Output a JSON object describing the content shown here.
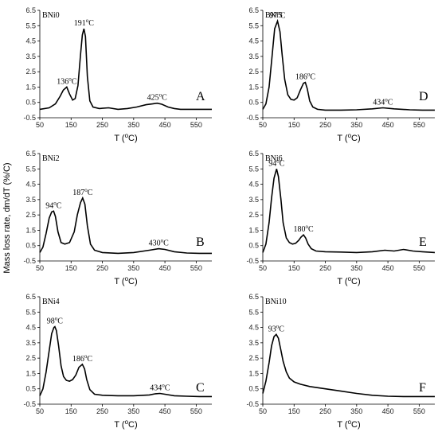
{
  "figure": {
    "ylabel": "Mass loss rate, dm/dT (%/C)",
    "xlabel_prefix": "T (",
    "xlabel_sup": "o",
    "xlabel_suffix": "C)"
  },
  "chart_data": [
    {
      "type": "line",
      "sample": "BNi0",
      "letter": "A",
      "xlim": [
        50,
        600
      ],
      "ylim": [
        -0.5,
        6.5
      ],
      "xticks": [
        50,
        150,
        250,
        350,
        450,
        550
      ],
      "yticks": [
        -0.5,
        0.5,
        1.5,
        2.5,
        3.5,
        4.5,
        5.5,
        6.5
      ],
      "x": [
        50,
        80,
        100,
        115,
        125,
        136,
        145,
        155,
        163,
        172,
        180,
        186,
        191,
        196,
        202,
        210,
        220,
        240,
        270,
        300,
        330,
        360,
        390,
        410,
        425,
        440,
        460,
        480,
        500,
        530,
        560,
        600
      ],
      "y": [
        0.05,
        0.15,
        0.4,
        0.9,
        1.3,
        1.5,
        1.05,
        0.65,
        0.75,
        1.6,
        3.6,
        4.9,
        5.3,
        4.8,
        2.2,
        0.6,
        0.2,
        0.1,
        0.15,
        0.05,
        0.1,
        0.2,
        0.35,
        0.4,
        0.45,
        0.38,
        0.2,
        0.1,
        0.05,
        0.05,
        0.05,
        0.05
      ],
      "peaks": [
        {
          "x": 136,
          "y": 1.5,
          "value": "136",
          "unit": "C"
        },
        {
          "x": 191,
          "y": 5.3,
          "value": "191",
          "unit": "C"
        },
        {
          "x": 425,
          "y": 0.45,
          "value": "425",
          "unit": "C"
        }
      ]
    },
    {
      "type": "line",
      "sample": "BNi5",
      "letter": "D",
      "xlim": [
        50,
        600
      ],
      "ylim": [
        -0.5,
        6.5
      ],
      "xticks": [
        50,
        150,
        250,
        350,
        450,
        550
      ],
      "yticks": [
        -0.5,
        0.5,
        1.5,
        2.5,
        3.5,
        4.5,
        5.5,
        6.5
      ],
      "x": [
        50,
        60,
        70,
        80,
        88,
        97,
        105,
        112,
        120,
        130,
        140,
        150,
        160,
        170,
        180,
        186,
        192,
        200,
        210,
        225,
        250,
        300,
        350,
        400,
        434,
        470,
        520,
        560,
        600
      ],
      "y": [
        0.05,
        0.4,
        1.5,
        3.6,
        5.3,
        5.8,
        5.1,
        3.6,
        2.0,
        1.0,
        0.7,
        0.65,
        0.8,
        1.3,
        1.75,
        1.8,
        1.4,
        0.6,
        0.2,
        0.05,
        0.0,
        0.0,
        0.02,
        0.08,
        0.15,
        0.08,
        0.02,
        0.0,
        0.0
      ],
      "peaks": [
        {
          "x": 97,
          "y": 5.8,
          "value": "97",
          "unit": "C"
        },
        {
          "x": 186,
          "y": 1.8,
          "value": "186",
          "unit": "C"
        },
        {
          "x": 434,
          "y": 0.15,
          "value": "434",
          "unit": "C"
        }
      ]
    },
    {
      "type": "line",
      "sample": "BNi2",
      "letter": "B",
      "xlim": [
        50,
        600
      ],
      "ylim": [
        -0.5,
        6.5
      ],
      "xticks": [
        50,
        150,
        250,
        350,
        450,
        550
      ],
      "yticks": [
        -0.5,
        0.5,
        1.5,
        2.5,
        3.5,
        4.5,
        5.5,
        6.5
      ],
      "x": [
        50,
        60,
        70,
        80,
        88,
        94,
        100,
        108,
        118,
        130,
        145,
        160,
        170,
        180,
        187,
        194,
        202,
        212,
        225,
        250,
        300,
        350,
        400,
        430,
        450,
        480,
        520,
        560,
        600
      ],
      "y": [
        0.05,
        0.4,
        1.3,
        2.3,
        2.7,
        2.75,
        2.4,
        1.4,
        0.7,
        0.6,
        0.7,
        1.4,
        2.5,
        3.3,
        3.6,
        3.2,
        1.8,
        0.6,
        0.2,
        0.05,
        0.0,
        0.05,
        0.2,
        0.3,
        0.25,
        0.1,
        0.02,
        0.0,
        0.0
      ],
      "peaks": [
        {
          "x": 94,
          "y": 2.75,
          "value": "94",
          "unit": "C"
        },
        {
          "x": 187,
          "y": 3.6,
          "value": "187",
          "unit": "C"
        },
        {
          "x": 430,
          "y": 0.3,
          "value": "430",
          "unit": "C"
        }
      ]
    },
    {
      "type": "line",
      "sample": "BNi6",
      "letter": "E",
      "xlim": [
        50,
        600
      ],
      "ylim": [
        -0.5,
        6.5
      ],
      "xticks": [
        50,
        150,
        250,
        350,
        450,
        550
      ],
      "yticks": [
        -0.5,
        0.5,
        1.5,
        2.5,
        3.5,
        4.5,
        5.5,
        6.5
      ],
      "x": [
        50,
        60,
        70,
        78,
        86,
        94,
        100,
        108,
        115,
        125,
        135,
        145,
        155,
        165,
        172,
        180,
        187,
        195,
        205,
        220,
        250,
        300,
        350,
        400,
        440,
        470,
        500,
        530,
        560,
        600
      ],
      "y": [
        0.05,
        0.6,
        2.0,
        3.6,
        4.9,
        5.5,
        5.0,
        3.5,
        2.0,
        1.0,
        0.7,
        0.6,
        0.65,
        0.85,
        1.05,
        1.2,
        1.0,
        0.6,
        0.3,
        0.15,
        0.1,
        0.08,
        0.05,
        0.1,
        0.2,
        0.15,
        0.25,
        0.15,
        0.1,
        0.05
      ],
      "peaks": [
        {
          "x": 94,
          "y": 5.5,
          "value": "94",
          "unit": "C"
        },
        {
          "x": 180,
          "y": 1.2,
          "value": "180",
          "unit": "C"
        }
      ]
    },
    {
      "type": "line",
      "sample": "BNi4",
      "letter": "C",
      "xlim": [
        50,
        600
      ],
      "ylim": [
        -0.5,
        6.5
      ],
      "xticks": [
        50,
        150,
        250,
        350,
        450,
        550
      ],
      "yticks": [
        -0.5,
        0.5,
        1.5,
        2.5,
        3.5,
        4.5,
        5.5,
        6.5
      ],
      "x": [
        50,
        60,
        70,
        80,
        88,
        95,
        98,
        103,
        110,
        118,
        126,
        135,
        145,
        155,
        165,
        175,
        186,
        193,
        200,
        210,
        225,
        250,
        300,
        350,
        400,
        420,
        434,
        450,
        480,
        520,
        560,
        600
      ],
      "y": [
        0.05,
        0.5,
        1.6,
        3.0,
        4.1,
        4.5,
        4.55,
        4.3,
        3.3,
        2.0,
        1.3,
        1.05,
        1.0,
        1.1,
        1.4,
        1.9,
        2.1,
        1.8,
        1.1,
        0.45,
        0.15,
        0.08,
        0.05,
        0.05,
        0.1,
        0.18,
        0.2,
        0.15,
        0.05,
        0.02,
        0.0,
        0.0
      ],
      "peaks": [
        {
          "x": 98,
          "y": 4.55,
          "value": "98",
          "unit": "C"
        },
        {
          "x": 186,
          "y": 2.1,
          "value": "186",
          "unit": "C"
        },
        {
          "x": 434,
          "y": 0.2,
          "value": "434",
          "unit": "C"
        }
      ]
    },
    {
      "type": "line",
      "sample": "BNi10",
      "letter": "F",
      "xlim": [
        50,
        600
      ],
      "ylim": [
        -0.5,
        6.5
      ],
      "xticks": [
        50,
        150,
        250,
        350,
        450,
        550
      ],
      "yticks": [
        -0.5,
        0.5,
        1.5,
        2.5,
        3.5,
        4.5,
        5.5,
        6.5
      ],
      "x": [
        50,
        60,
        70,
        78,
        86,
        93,
        100,
        108,
        115,
        125,
        135,
        150,
        170,
        200,
        250,
        300,
        350,
        400,
        450,
        500,
        550,
        600
      ],
      "y": [
        0.2,
        1.0,
        2.2,
        3.3,
        3.9,
        4.05,
        3.8,
        3.0,
        2.3,
        1.6,
        1.2,
        0.95,
        0.8,
        0.65,
        0.5,
        0.35,
        0.2,
        0.08,
        0.02,
        0.0,
        0.0,
        0.0
      ],
      "peaks": [
        {
          "x": 93,
          "y": 4.05,
          "value": "93",
          "unit": "C"
        }
      ]
    }
  ]
}
